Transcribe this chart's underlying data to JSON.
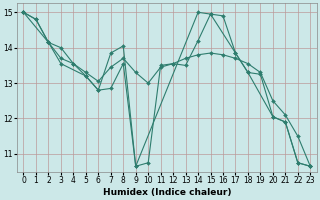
{
  "bg_color": "#cce8e8",
  "grid_color": "#bb9999",
  "line_color": "#2e7d6e",
  "xlim": [
    -0.5,
    23.5
  ],
  "ylim": [
    10.5,
    15.25
  ],
  "xticks": [
    0,
    1,
    2,
    3,
    4,
    5,
    6,
    7,
    8,
    9,
    10,
    11,
    12,
    13,
    14,
    15,
    16,
    17,
    18,
    19,
    20,
    21,
    22,
    23
  ],
  "yticks": [
    11,
    12,
    13,
    14,
    15
  ],
  "xlabel": "Humidex (Indice chaleur)",
  "series": [
    {
      "x": [
        0,
        1,
        2,
        3,
        4,
        5,
        6,
        7,
        8,
        9,
        10,
        11,
        12,
        13,
        14,
        15,
        16,
        17,
        18,
        19,
        20,
        21,
        22,
        23
      ],
      "y": [
        15.0,
        14.8,
        14.15,
        13.7,
        13.55,
        13.2,
        12.8,
        12.85,
        13.55,
        10.65,
        10.75,
        13.5,
        13.55,
        13.5,
        14.2,
        14.95,
        14.9,
        13.85,
        13.3,
        13.25,
        12.05,
        11.9,
        10.75,
        10.65
      ]
    },
    {
      "x": [
        0,
        2,
        3,
        5,
        6,
        7,
        8,
        9,
        14,
        15,
        17,
        18,
        20,
        21,
        22,
        23
      ],
      "y": [
        15.0,
        14.15,
        13.55,
        13.2,
        12.8,
        13.85,
        14.05,
        10.65,
        15.0,
        14.95,
        13.85,
        13.3,
        12.05,
        11.9,
        10.75,
        10.65
      ]
    },
    {
      "x": [
        0,
        1,
        2,
        3,
        4,
        5,
        6,
        7,
        8,
        9,
        10,
        11,
        12,
        13,
        14,
        15,
        16,
        17,
        18,
        19,
        20,
        21,
        22,
        23
      ],
      "y": [
        15.0,
        14.8,
        14.15,
        14.0,
        13.55,
        13.3,
        13.05,
        13.45,
        13.7,
        13.3,
        13.0,
        13.45,
        13.55,
        13.7,
        13.8,
        13.85,
        13.8,
        13.7,
        13.55,
        13.3,
        12.5,
        12.1,
        11.5,
        10.65
      ]
    }
  ]
}
